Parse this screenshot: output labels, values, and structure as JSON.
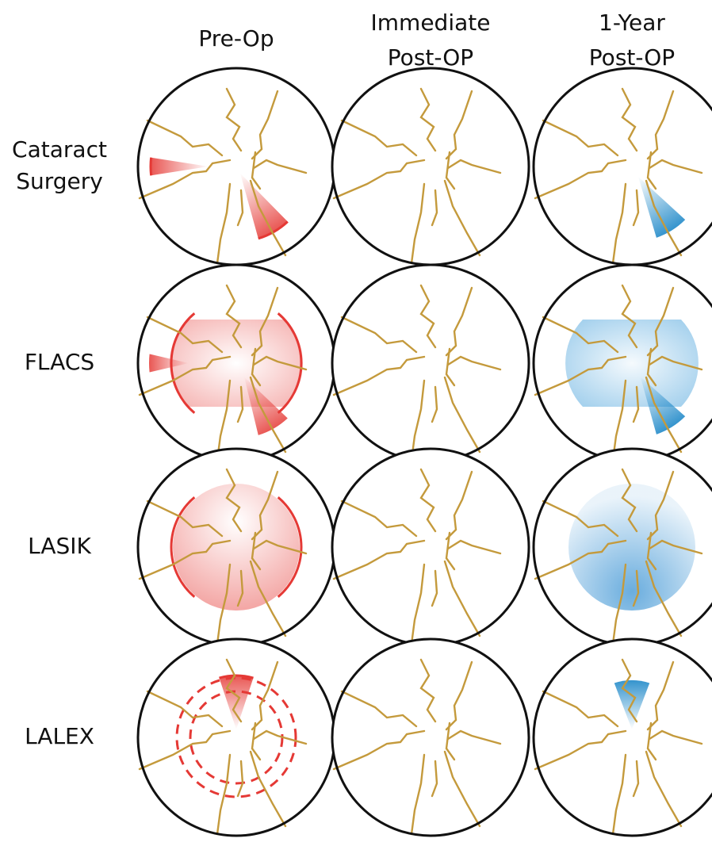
{
  "columns": [
    {
      "lines": [
        "Pre-Op"
      ]
    },
    {
      "lines": [
        "Immediate",
        "Post-OP"
      ]
    },
    {
      "lines": [
        "1-Year",
        "Post-OP"
      ]
    }
  ],
  "rows": [
    {
      "lines": [
        "Cataract",
        "Surgery"
      ]
    },
    {
      "lines": [
        "FLACS"
      ]
    },
    {
      "lines": [
        "LASIK"
      ]
    },
    {
      "lines": [
        "LALEX"
      ]
    }
  ]
}
